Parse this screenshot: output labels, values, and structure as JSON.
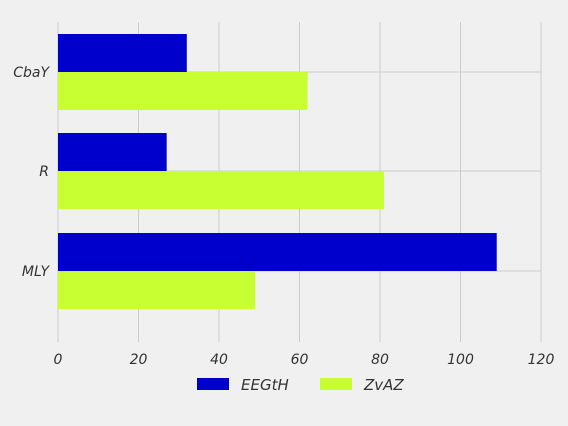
{
  "chart_data": {
    "type": "bar",
    "orientation": "horizontal",
    "categories": [
      "CbaY",
      "R",
      "MLY"
    ],
    "series": [
      {
        "name": "EEGtH",
        "values": [
          32,
          27,
          109
        ],
        "color": "#0000cc"
      },
      {
        "name": "ZvAZ",
        "values": [
          62,
          81,
          49
        ],
        "color": "#c8ff32"
      }
    ],
    "xlim": [
      0,
      120
    ],
    "xticks": [
      0,
      20,
      40,
      60,
      80,
      100,
      120
    ],
    "tick_labels": [
      "0",
      "20",
      "40",
      "60",
      "80",
      "100",
      "120"
    ],
    "grid": true,
    "legend_position": "bottom-center",
    "background": "#f0f0f0",
    "grid_color": "#cbcbcb"
  }
}
